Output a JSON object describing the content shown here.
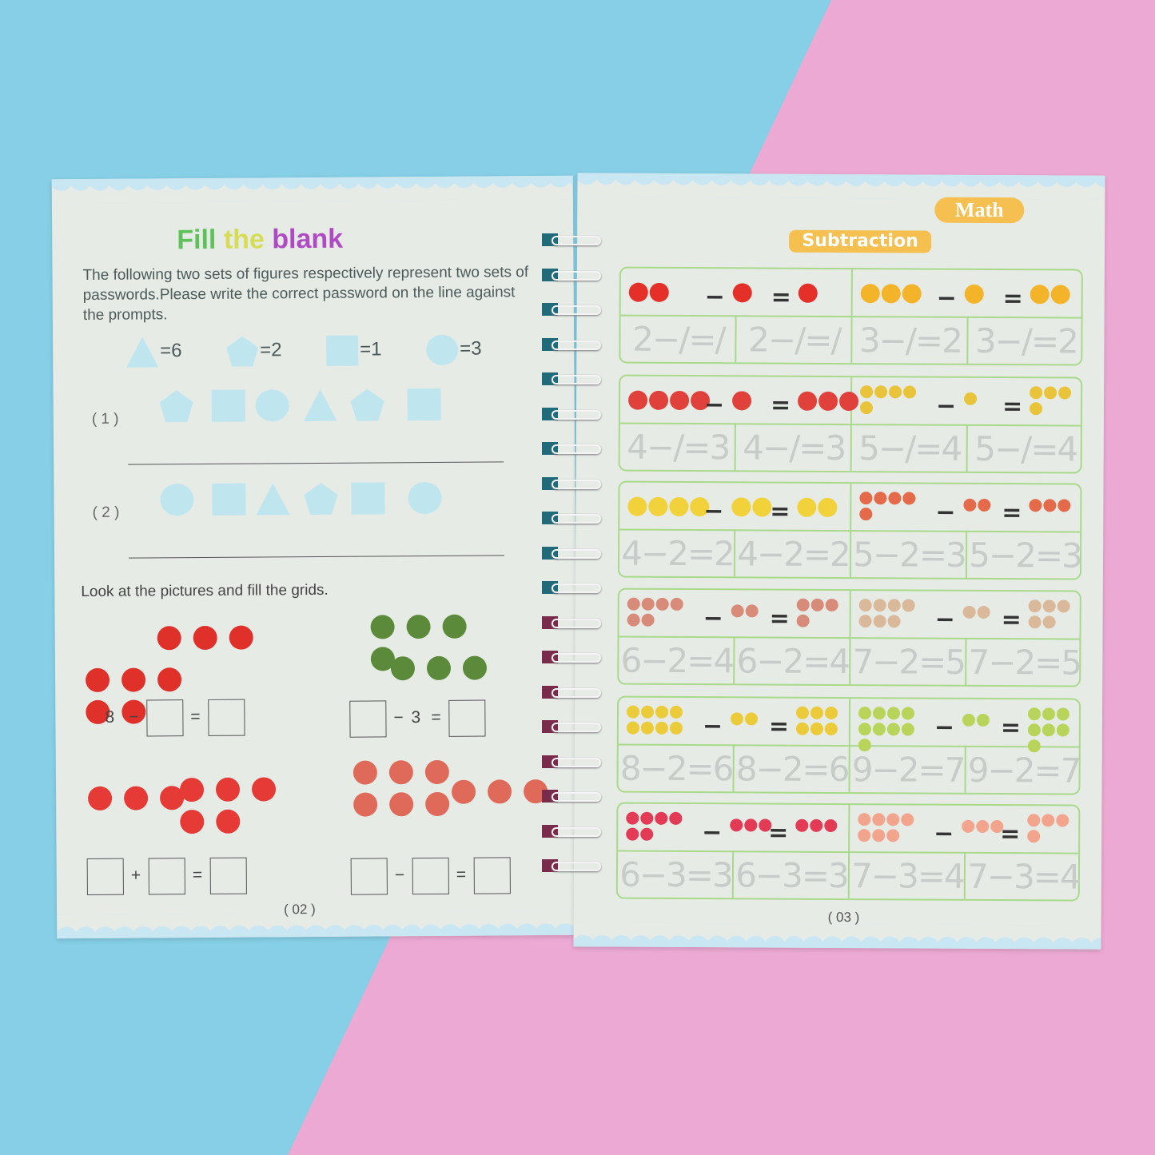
{
  "background": {
    "left_color": "#86cfe6",
    "right_color": "#eba9d3"
  },
  "left_page": {
    "title": [
      "Fill",
      "the",
      "blank"
    ],
    "instructions": "The following two sets of figures respectively represent two sets of passwords.Please write the correct password on the line against the prompts.",
    "key": [
      {
        "shape": "triangle",
        "label": "=6"
      },
      {
        "shape": "pentagon",
        "label": "=2"
      },
      {
        "shape": "square",
        "label": "=1"
      },
      {
        "shape": "circle",
        "label": "=3"
      }
    ],
    "prompts": [
      {
        "label": "( 1 )",
        "shapes": [
          "pentagon",
          "square",
          "circle",
          "triangle",
          "pentagon",
          "square"
        ]
      },
      {
        "label": "( 2 )",
        "shapes": [
          "circle",
          "square",
          "triangle",
          "pentagon",
          "square",
          "circle"
        ]
      }
    ],
    "grid_instruction": "Look at the pictures and fill the grids.",
    "problems": [
      {
        "icon": "apple",
        "first": "8",
        "op": "−",
        "second": "",
        "eq": "="
      },
      {
        "icon": "watermelon",
        "first": "",
        "op": "−",
        "second": "3",
        "eq": "="
      },
      {
        "icon": "strawberry",
        "first": "",
        "op": "+",
        "second": "",
        "eq": "="
      },
      {
        "icon": "mushroom",
        "first": "",
        "op": "−",
        "second": "",
        "eq": "="
      }
    ],
    "plus_sign": "+",
    "minus_sign": "−",
    "page_number": "( 02 )"
  },
  "right_page": {
    "subject": "Math",
    "topic": "Subtraction",
    "rows": [
      {
        "items": [
          {
            "icon": "apple",
            "color": "#e5302a",
            "a": 2,
            "b": 1,
            "c": 1
          },
          {
            "icon": "orange",
            "color": "#f4b42a",
            "a": 3,
            "b": 1,
            "c": 2
          }
        ],
        "cells": [
          "2−/=/",
          "2−/=/",
          "3−/=2",
          "3−/=2"
        ]
      },
      {
        "items": [
          {
            "icon": "strawberry",
            "color": "#e0413a",
            "a": 4,
            "b": 1,
            "c": 3
          },
          {
            "icon": "pineapple",
            "color": "#e9c43b",
            "a": 5,
            "b": 1,
            "c": 4
          }
        ],
        "cells": [
          "4−/=3",
          "4−/=3",
          "5−/=4",
          "5−/=4"
        ]
      },
      {
        "items": [
          {
            "icon": "chick",
            "color": "#f1d23a",
            "a": 4,
            "b": 2,
            "c": 2
          },
          {
            "icon": "bird",
            "color": "#e46a4a",
            "a": 5,
            "b": 2,
            "c": 3
          }
        ],
        "cells": [
          "4−2=2",
          "4−2=2",
          "5−2=3",
          "5−2=3"
        ]
      },
      {
        "items": [
          {
            "icon": "hen",
            "color": "#d98b7a",
            "a": 6,
            "b": 2,
            "c": 4
          },
          {
            "icon": "cat",
            "color": "#d9b99a",
            "a": 7,
            "b": 2,
            "c": 5
          }
        ],
        "cells": [
          "6−2=4",
          "6−2=4",
          "7−2=5",
          "7−2=5"
        ]
      },
      {
        "items": [
          {
            "icon": "mango",
            "color": "#eccb3a",
            "a": 8,
            "b": 2,
            "c": 6
          },
          {
            "icon": "pear",
            "color": "#b9d45a",
            "a": 9,
            "b": 2,
            "c": 7
          }
        ],
        "cells": [
          "8−2=6",
          "8−2=6",
          "9−2=7",
          "9−2=7"
        ]
      },
      {
        "items": [
          {
            "icon": "dragon-fruit",
            "color": "#e33a55",
            "a": 6,
            "b": 3,
            "c": 3
          },
          {
            "icon": "peach",
            "color": "#f2a58c",
            "a": 7,
            "b": 3,
            "c": 4
          }
        ],
        "cells": [
          "6−3=3",
          "6−3=3",
          "7−3=4",
          "7−3=4"
        ]
      }
    ],
    "minus_sign": "−",
    "equals_sign": "=",
    "page_number": "( 03 )"
  }
}
